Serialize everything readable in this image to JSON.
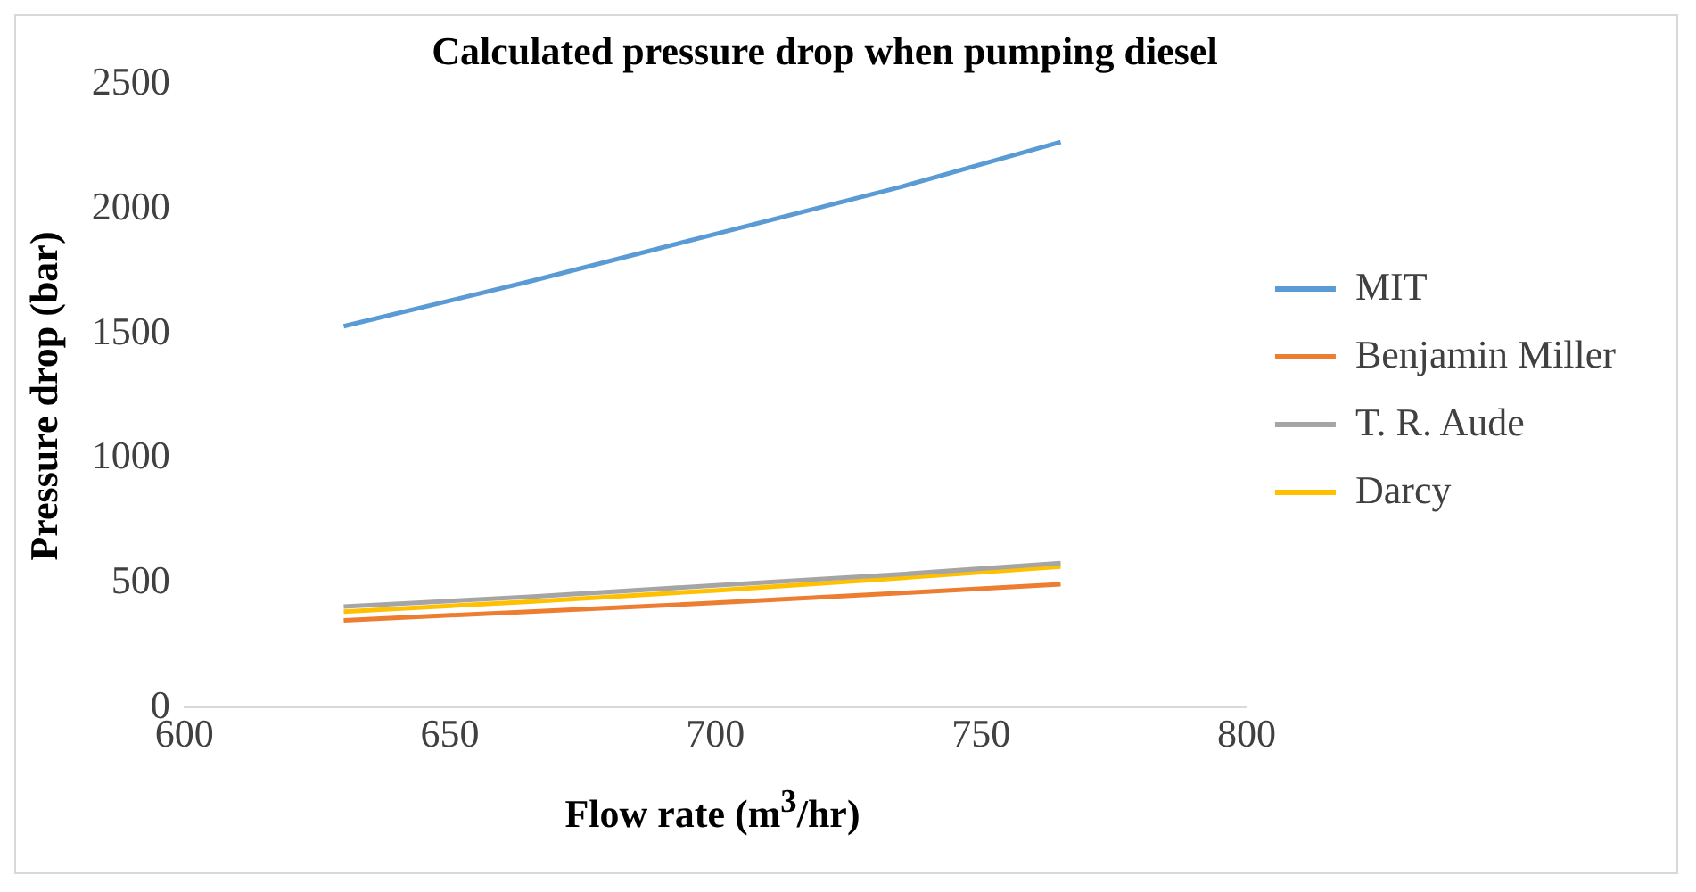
{
  "chart_data": {
    "type": "line",
    "title": "Calculated pressure drop when pumping diesel",
    "xlabel": "Flow rate (m$^{3}$/hr)",
    "ylabel": "Pressure drop (bar)",
    "x": [
      630,
      665,
      700,
      735,
      765
    ],
    "series": [
      {
        "name": "MIT",
        "color": "#5b9bd5",
        "values": [
          1530,
          1710,
          1900,
          2090,
          2270
        ]
      },
      {
        "name": "Benjamin Miller",
        "color": "#ed7d31",
        "values": [
          350,
          385,
          420,
          460,
          495
        ]
      },
      {
        "name": "T. R. Aude",
        "color": "#a5a5a5",
        "values": [
          405,
          445,
          490,
          535,
          580
        ]
      },
      {
        "name": "Darcy",
        "color": "#ffc000",
        "values": [
          385,
          425,
          470,
          520,
          565
        ]
      }
    ],
    "xlim": [
      600,
      800
    ],
    "xticks": [
      600,
      650,
      700,
      750,
      800
    ],
    "ylim": [
      0,
      2500
    ],
    "yticks": [
      0,
      500,
      1000,
      1500,
      2000,
      2500
    ],
    "grid": false,
    "legend": "right",
    "marker": "none",
    "line_style": "solid"
  }
}
